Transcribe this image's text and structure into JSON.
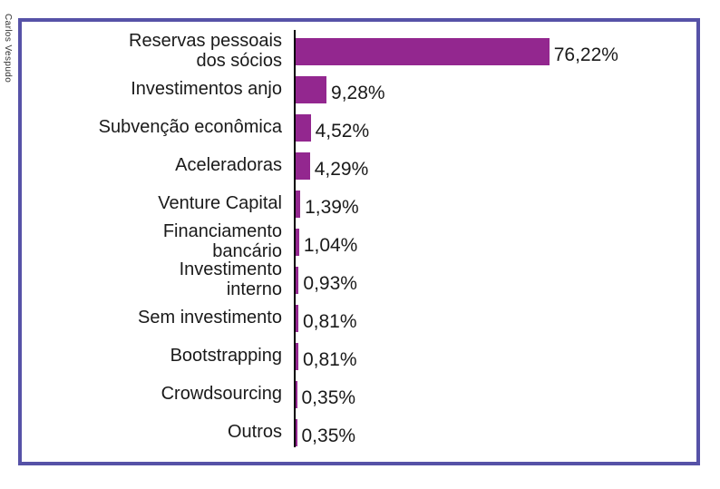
{
  "credit": "Carlos Vespudo",
  "colors": {
    "bar": "#93278F",
    "frame_border": "#5652A7",
    "axis": "#000000",
    "text": "#1A1A1A"
  },
  "chart_data": {
    "type": "bar",
    "orientation": "horizontal",
    "title": "",
    "xlabel": "",
    "ylabel": "",
    "grid": false,
    "legend": false,
    "xlim": [
      0,
      120
    ],
    "categories": [
      "Reservas pessoais\ndos sócios",
      "Investimentos anjo",
      "Subvenção econômica",
      "Aceleradoras",
      "Venture Capital",
      "Financiamento\nbancário",
      "Investimento\ninterno",
      "Sem investimento",
      "Bootstrapping",
      "Crowdsourcing",
      "Outros"
    ],
    "values": [
      76.22,
      9.28,
      4.52,
      4.29,
      1.39,
      1.04,
      0.93,
      0.81,
      0.81,
      0.35,
      0.35
    ],
    "value_labels": [
      "76,22%",
      "9,28%",
      "4,52%",
      "4,29%",
      "1,39%",
      "1,04%",
      "0,93%",
      "0,81%",
      "0,81%",
      "0,35%",
      "0,35%"
    ]
  }
}
